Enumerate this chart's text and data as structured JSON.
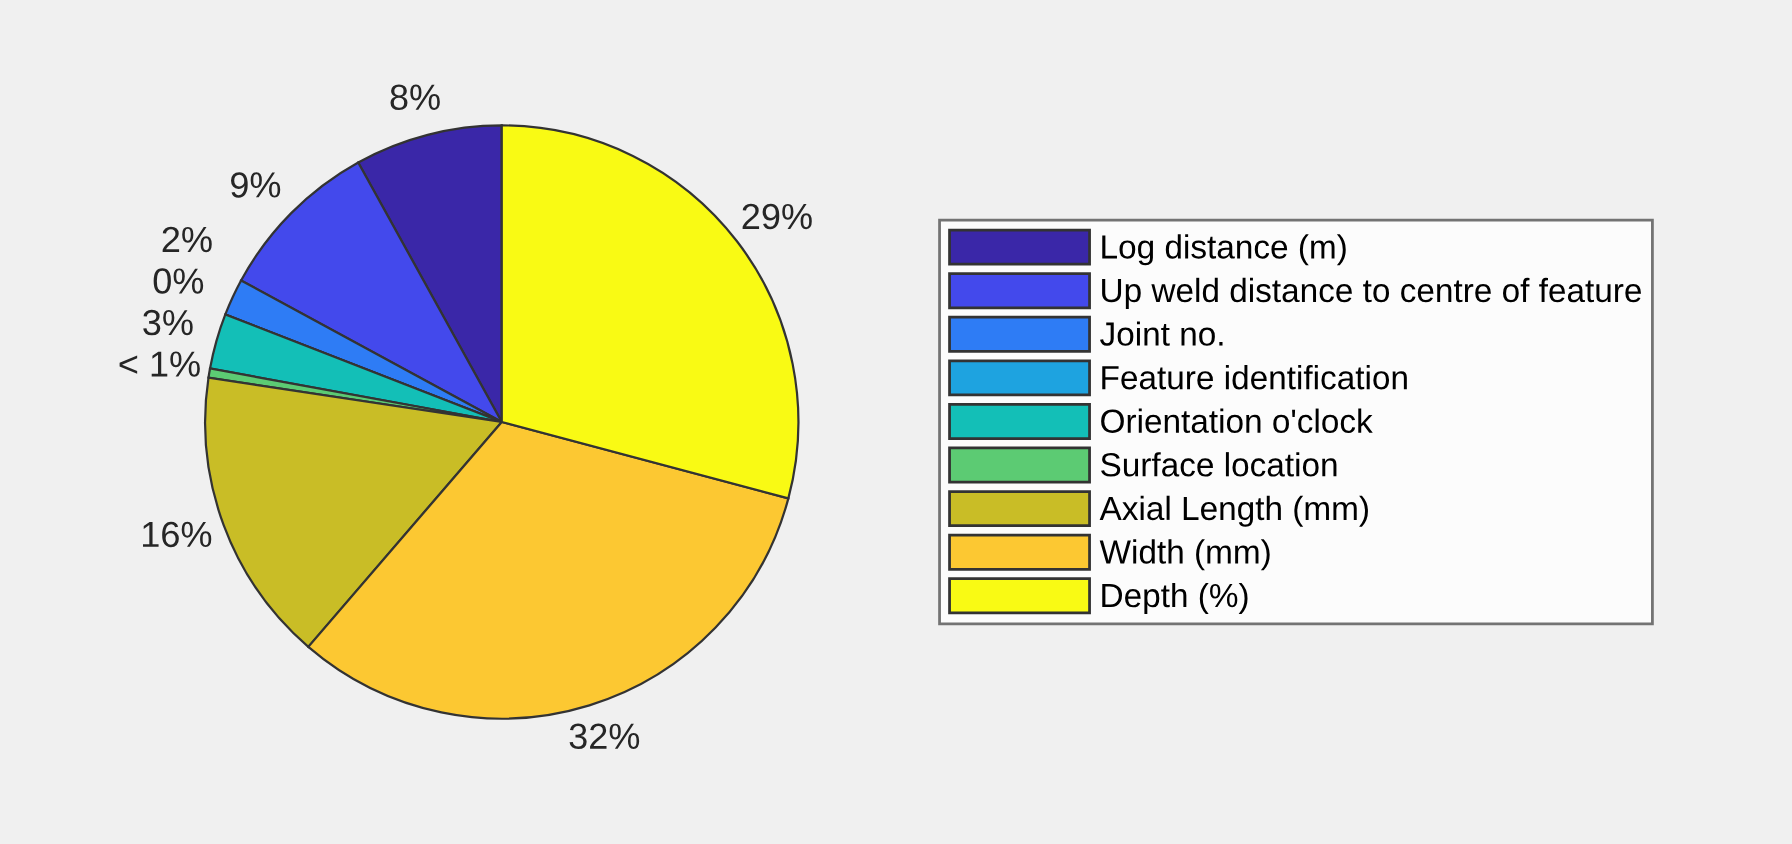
{
  "chart_data": {
    "type": "pie",
    "categories": [
      "Log distance (m)",
      "Up weld distance to centre of feature",
      "Joint no.",
      "Feature identification",
      "Orientation o'clock",
      "Surface location",
      "Axial Length (mm)",
      "Width (mm)",
      "Depth (%)"
    ],
    "values": [
      8,
      9,
      2,
      0,
      3,
      0.5,
      16,
      32,
      29
    ],
    "value_labels": [
      "8%",
      "9%",
      "2%",
      "0%",
      "3%",
      "< 1%",
      "16%",
      "32%",
      "29%"
    ],
    "colors": [
      "#3a27a8",
      "#4349ec",
      "#2e7cf5",
      "#1ea3e0",
      "#13bfb7",
      "#5ccb73",
      "#c9bd26",
      "#fcc832",
      "#f9fa14"
    ],
    "legend": "right"
  }
}
